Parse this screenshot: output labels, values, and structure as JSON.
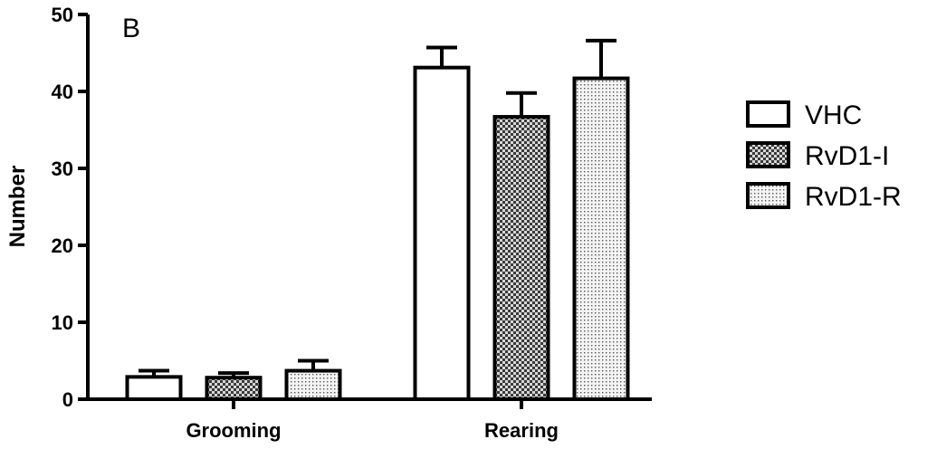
{
  "chart_data": {
    "type": "bar",
    "panel_label": "B",
    "ylabel": "Number",
    "xlabel": "",
    "ylim": [
      0,
      50
    ],
    "y_ticks": [
      0,
      10,
      20,
      30,
      40,
      50
    ],
    "y_tick_labels": [
      "0",
      "10",
      "20",
      "30",
      "40",
      "50"
    ],
    "categories": [
      "Grooming",
      "Rearing"
    ],
    "error_bars": "upper only (mean + error)",
    "legend_position": "right",
    "series": [
      {
        "name": "VHC",
        "pattern": "white",
        "values": [
          2.9,
          43.1
        ],
        "errors": [
          0.8,
          2.6
        ]
      },
      {
        "name": "RvD1-I",
        "pattern": "dark-checker",
        "values": [
          2.8,
          36.7
        ],
        "errors": [
          0.6,
          3.1
        ]
      },
      {
        "name": "RvD1-R",
        "pattern": "light-dots",
        "values": [
          3.7,
          41.7
        ],
        "errors": [
          1.3,
          4.9
        ]
      }
    ]
  }
}
